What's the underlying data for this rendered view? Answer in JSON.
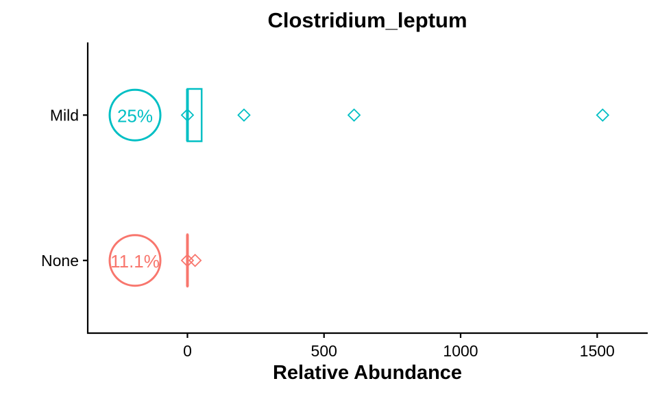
{
  "chart_data": {
    "type": "boxplot",
    "title": "Clostridium_leptum",
    "xlabel": "Relative Abundance",
    "ylabel": "",
    "xlim": [
      -365,
      1685
    ],
    "x_ticks": [
      0,
      500,
      1000,
      1500
    ],
    "x_tick_labels": [
      "0",
      "500",
      "1000",
      "1500"
    ],
    "categories": [
      "None",
      "Mild"
    ],
    "grid": false,
    "legend": false,
    "colors": {
      "None": "#F8766D",
      "Mild": "#00BFC4"
    },
    "groups": [
      {
        "name": "None",
        "color": "#F8766D",
        "box": {
          "q1": 0,
          "median": 0,
          "q3": 0,
          "whisker_low": 0,
          "whisker_high": 0
        },
        "points": [
          0,
          28
        ],
        "nonzero_label": "11.1%",
        "nonzero_percent": 11.1
      },
      {
        "name": "Mild",
        "color": "#00BFC4",
        "box": {
          "q1": 0,
          "median": 0,
          "q3": 52,
          "whisker_low": 0,
          "whisker_high": 52
        },
        "points": [
          0,
          207,
          610,
          1520
        ],
        "nonzero_label": "25%",
        "nonzero_percent": 25
      }
    ]
  }
}
